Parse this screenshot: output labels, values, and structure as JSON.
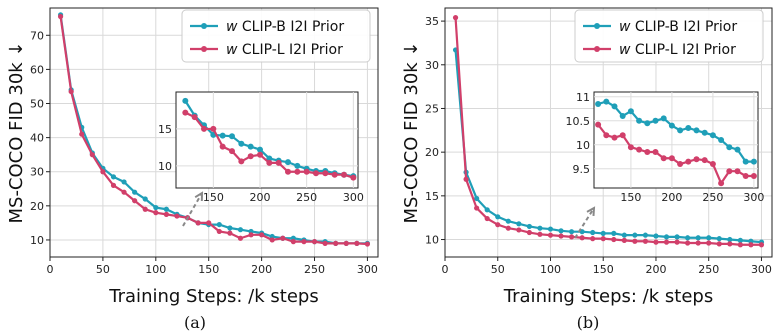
{
  "chart_data": [
    {
      "type": "line",
      "caption": "(a)",
      "xlabel": "Training Steps: /k steps",
      "ylabel": "MS-COCO FID 30k ↓",
      "xlim": [
        0,
        310
      ],
      "ylim": [
        5,
        78
      ],
      "xticks": [
        0,
        50,
        100,
        150,
        200,
        250,
        300
      ],
      "yticks": [
        10,
        20,
        30,
        40,
        50,
        60,
        70
      ],
      "grid": true,
      "legend": "top-right",
      "x": [
        10,
        20,
        30,
        40,
        50,
        60,
        70,
        80,
        90,
        100,
        110,
        120,
        130,
        140,
        150,
        160,
        170,
        180,
        190,
        200,
        210,
        220,
        230,
        240,
        250,
        260,
        270,
        280,
        290,
        300
      ],
      "series": [
        {
          "name": "w CLIP-B I2I Prior",
          "color": "#1f9fb8",
          "values": [
            76,
            54,
            43,
            35.5,
            31,
            28.5,
            27,
            24,
            22,
            19.5,
            19,
            17.5,
            16.5,
            15,
            14.5,
            14.5,
            13.5,
            13,
            12.5,
            12,
            11,
            10.5,
            10.5,
            10,
            9.5,
            9.5,
            9,
            9,
            9,
            9
          ]
        },
        {
          "name": "w CLIP-L I2I Prior",
          "color": "#d13f6a",
          "values": [
            75.5,
            53.5,
            41,
            35,
            30,
            26,
            24,
            21.5,
            19,
            18,
            17.5,
            17,
            16.5,
            15,
            15,
            12.5,
            12,
            10.5,
            11.5,
            11.5,
            10,
            10.5,
            9.5,
            9.5,
            9.5,
            9,
            9,
            9,
            9,
            8.8
          ]
        }
      ],
      "inset": {
        "xlim": [
          110,
          305
        ],
        "ylim": [
          7,
          20
        ],
        "xticks": [
          150,
          200,
          250,
          300
        ],
        "yticks": [
          10,
          15
        ],
        "x": [
          120,
          130,
          140,
          150,
          160,
          170,
          180,
          190,
          200,
          210,
          220,
          230,
          240,
          250,
          260,
          270,
          280,
          290,
          300
        ],
        "series": [
          {
            "values": [
              18.8,
              16.8,
              15.5,
              14.2,
              14.1,
              14,
              13,
              12.6,
              12.2,
              11,
              10.7,
              10.5,
              10,
              9.6,
              9.3,
              9.3,
              9,
              8.8,
              8.6
            ]
          },
          {
            "values": [
              17.2,
              16.6,
              15,
              15,
              12.6,
              12,
              10.6,
              11.3,
              11.5,
              10.4,
              10.4,
              9.2,
              9.2,
              9.2,
              9,
              9,
              8.8,
              8.8,
              8.4
            ]
          }
        ],
        "arrow": true
      }
    },
    {
      "type": "line",
      "caption": "(b)",
      "xlabel": "Training Steps: /k steps",
      "ylabel": "MS-COCO FID 30k ↓",
      "xlim": [
        0,
        310
      ],
      "ylim": [
        8,
        36.5
      ],
      "xticks": [
        0,
        50,
        100,
        150,
        200,
        250,
        300
      ],
      "yticks": [
        10,
        15,
        20,
        25,
        30,
        35
      ],
      "grid": true,
      "legend": "top-right",
      "x": [
        10,
        20,
        30,
        40,
        50,
        60,
        70,
        80,
        90,
        100,
        110,
        120,
        130,
        140,
        150,
        160,
        170,
        180,
        190,
        200,
        210,
        220,
        230,
        240,
        250,
        260,
        270,
        280,
        290,
        300
      ],
      "series": [
        {
          "name": "w CLIP-B I2I Prior",
          "color": "#1f9fb8",
          "values": [
            31.7,
            17.7,
            14.7,
            13.4,
            12.6,
            12.1,
            11.8,
            11.5,
            11.3,
            11.2,
            11,
            10.9,
            10.9,
            10.8,
            10.7,
            10.7,
            10.5,
            10.5,
            10.5,
            10.4,
            10.3,
            10.3,
            10.2,
            10.2,
            10.2,
            10.1,
            10,
            9.9,
            9.8,
            9.7
          ]
        },
        {
          "name": "w CLIP-L I2I Prior",
          "color": "#d13f6a",
          "values": [
            35.4,
            16.9,
            13.6,
            12.4,
            11.7,
            11.3,
            11.1,
            10.8,
            10.6,
            10.5,
            10.4,
            10.3,
            10.2,
            10.1,
            10.1,
            10,
            9.9,
            9.8,
            9.8,
            9.7,
            9.7,
            9.7,
            9.6,
            9.6,
            9.6,
            9.5,
            9.5,
            9.4,
            9.4,
            9.4
          ]
        }
      ],
      "inset": {
        "xlim": [
          105,
          305
        ],
        "ylim": [
          9.1,
          11.1
        ],
        "xticks": [
          150,
          200,
          250,
          300
        ],
        "yticks": [
          9.5,
          10.0,
          10.5,
          11.0
        ],
        "x": [
          110,
          120,
          130,
          140,
          150,
          160,
          170,
          180,
          190,
          200,
          210,
          220,
          230,
          240,
          250,
          260,
          270,
          280,
          290,
          300
        ],
        "series": [
          {
            "values": [
              10.85,
              10.9,
              10.8,
              10.6,
              10.7,
              10.5,
              10.45,
              10.5,
              10.55,
              10.4,
              10.3,
              10.35,
              10.3,
              10.25,
              10.2,
              10.1,
              9.95,
              9.9,
              9.65,
              9.65
            ]
          },
          {
            "values": [
              10.42,
              10.2,
              10.15,
              10.2,
              9.95,
              9.9,
              9.85,
              9.85,
              9.72,
              9.72,
              9.6,
              9.65,
              9.7,
              9.68,
              9.6,
              9.2,
              9.45,
              9.45,
              9.35,
              9.35
            ]
          }
        ],
        "arrow": true
      }
    }
  ]
}
